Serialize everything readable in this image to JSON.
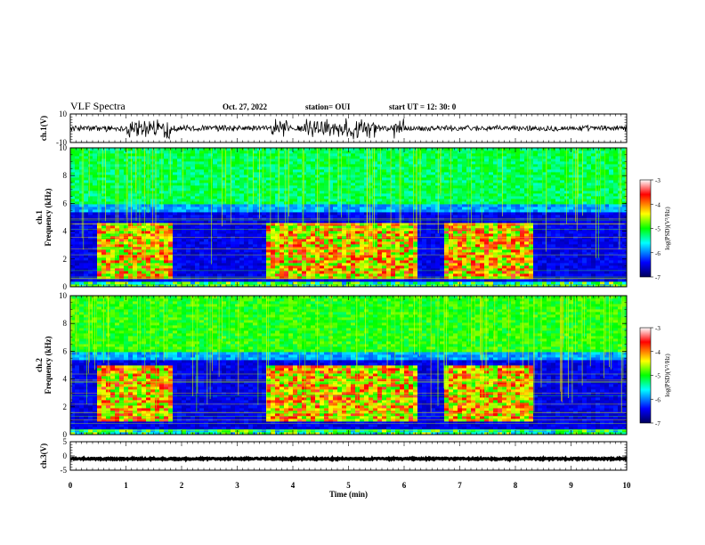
{
  "header": {
    "title": "VLF Spectra",
    "date": "Oct. 27, 2022",
    "station": "station= OUI",
    "start": "start  UT =   12: 30: 0"
  },
  "colorbar": {
    "label": "log(PSD)(V²/Hz)",
    "ticks": [
      "-3",
      "-4",
      "-5",
      "-6",
      "-7"
    ]
  },
  "chart_data": [
    {
      "type": "line",
      "name": "waveform-ch1",
      "ylabel": "ch.1(V)",
      "ylim": [
        -10,
        10
      ],
      "yticks": [
        "10",
        "-10"
      ],
      "xlim": [
        0,
        10
      ],
      "baseline": 0
    },
    {
      "type": "heatmap",
      "name": "spectrogram-ch1",
      "ylabel": "ch.1\nFrequency (kHz)",
      "ylim": [
        0,
        10
      ],
      "yticks": [
        "0",
        "2",
        "4",
        "6",
        "8",
        "10"
      ],
      "xlim": [
        0,
        10
      ],
      "zlim": [
        -7,
        -3
      ],
      "bursts_min": [
        [
          0.45,
          1.8
        ],
        [
          3.55,
          6.2
        ],
        [
          6.7,
          8.3
        ]
      ],
      "burst_freq_khz": [
        0.5,
        4.6
      ]
    },
    {
      "type": "heatmap",
      "name": "spectrogram-ch2",
      "ylabel": "ch.2\nFrequency (kHz)",
      "ylim": [
        0,
        10
      ],
      "yticks": [
        "0",
        "2",
        "4",
        "6",
        "8",
        "10"
      ],
      "xlim": [
        0,
        10
      ],
      "zlim": [
        -7,
        -3
      ],
      "bursts_min": [
        [
          0.45,
          1.8
        ],
        [
          3.55,
          6.2
        ],
        [
          6.7,
          8.3
        ]
      ],
      "burst_freq_khz": [
        1.0,
        5.0
      ]
    },
    {
      "type": "line",
      "name": "waveform-ch3",
      "ylabel": "ch.3(V)",
      "ylim": [
        -5,
        5
      ],
      "yticks": [
        "5",
        "0",
        "-5"
      ],
      "xlim": [
        0,
        10
      ],
      "baseline": -1
    }
  ],
  "xaxis": {
    "label": "Time (min)",
    "ticks": [
      "0",
      "1",
      "2",
      "3",
      "4",
      "5",
      "6",
      "7",
      "8",
      "9",
      "10"
    ]
  }
}
